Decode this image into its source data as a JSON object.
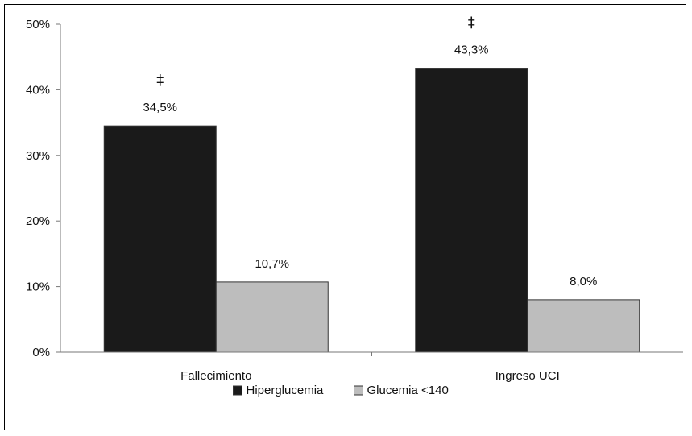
{
  "chart_data": {
    "type": "bar",
    "categories": [
      "Fallecimiento",
      "Ingreso UCI"
    ],
    "series": [
      {
        "name": "Hiperglucemia",
        "values": [
          34.5,
          43.3
        ],
        "labels": [
          "34,5%",
          "43,3%"
        ],
        "color": "#1a1a1a"
      },
      {
        "name": "Glucemia <140",
        "values": [
          10.7,
          8.0
        ],
        "labels": [
          "10,7%",
          "8,0%"
        ],
        "color": "#bdbdbd"
      }
    ],
    "ylim": [
      0,
      50
    ],
    "yticks": [
      0,
      10,
      20,
      30,
      40,
      50
    ],
    "ytick_labels": [
      "0%",
      "10%",
      "20%",
      "30%",
      "40%",
      "50%"
    ],
    "significance": [
      {
        "category": "Fallecimiento",
        "symbol": "‡"
      },
      {
        "category": "Ingreso UCI",
        "symbol": "‡"
      }
    ],
    "grid": false,
    "legend_position": "bottom"
  }
}
